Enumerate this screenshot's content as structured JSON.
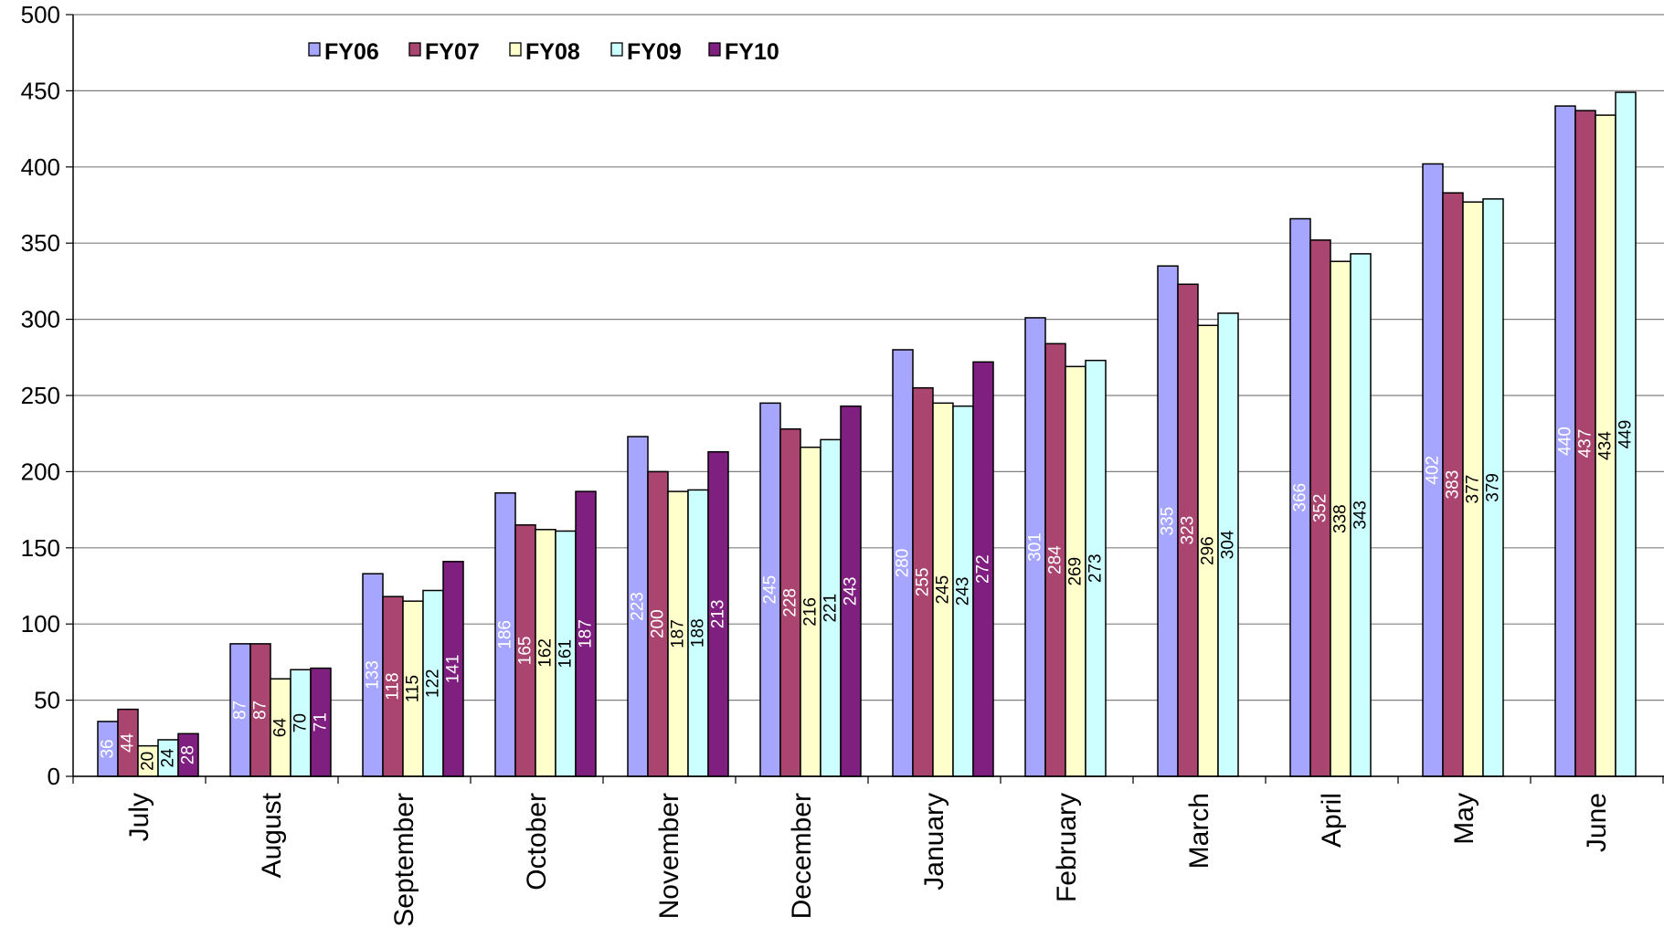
{
  "chart_data": {
    "type": "bar",
    "title": "",
    "xlabel": "",
    "ylabel": "",
    "ylim": [
      0,
      500
    ],
    "yticks": [
      0,
      50,
      100,
      150,
      200,
      250,
      300,
      350,
      400,
      450,
      500
    ],
    "grid": true,
    "legend_position": "top-left",
    "categories": [
      "July",
      "August",
      "September",
      "October",
      "November",
      "December",
      "January",
      "February",
      "March",
      "April",
      "May",
      "June"
    ],
    "series": [
      {
        "name": "FY06",
        "color": "#a6a6ff",
        "label_color": "#ffffff",
        "values": [
          36,
          87,
          133,
          186,
          223,
          245,
          280,
          301,
          335,
          366,
          402,
          440
        ]
      },
      {
        "name": "FY07",
        "color": "#a9456e",
        "label_color": "#ffffff",
        "values": [
          44,
          87,
          118,
          165,
          200,
          228,
          255,
          284,
          323,
          352,
          383,
          437
        ]
      },
      {
        "name": "FY08",
        "color": "#ffffcc",
        "label_color": "#000000",
        "values": [
          20,
          64,
          115,
          162,
          187,
          216,
          245,
          269,
          296,
          338,
          377,
          434
        ]
      },
      {
        "name": "FY09",
        "color": "#ccffff",
        "label_color": "#000000",
        "values": [
          24,
          70,
          122,
          161,
          188,
          221,
          243,
          273,
          304,
          343,
          379,
          449
        ]
      },
      {
        "name": "FY10",
        "color": "#7f1f7f",
        "label_color": "#ffffff",
        "values": [
          28,
          71,
          141,
          187,
          213,
          243,
          272,
          null,
          null,
          null,
          null,
          null
        ]
      }
    ]
  }
}
